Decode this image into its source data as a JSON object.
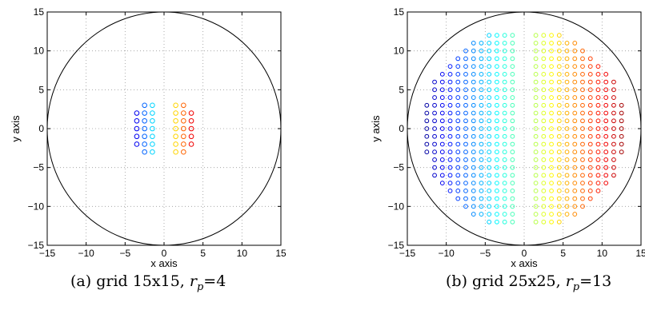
{
  "chart_data": [
    {
      "type": "scatter",
      "xlabel": "x axis",
      "ylabel": "y axis",
      "xlim": [
        -15,
        15
      ],
      "ylim": [
        -15,
        15
      ],
      "xticks": [
        -15,
        -10,
        -5,
        0,
        5,
        10,
        15
      ],
      "yticks": [
        -15,
        -10,
        -5,
        0,
        5,
        10,
        15
      ],
      "tick_labels": [
        "−15",
        "−10",
        "−5",
        "0",
        "5",
        "10",
        "15"
      ],
      "grid": "dotted",
      "circle": {
        "center": [
          0,
          0
        ],
        "radius": 15
      },
      "grid_size": 15,
      "rp": 4,
      "points": "pupil of radius 4 on 15x15 grid with 1-unit central column gap; colored by x (jet)",
      "caption": {
        "prefix": "(a) grid 15x15, ",
        "var": "r",
        "sub": "p",
        "suffix": "=4"
      }
    },
    {
      "type": "scatter",
      "xlabel": "x axis",
      "ylabel": "y axis",
      "xlim": [
        -15,
        15
      ],
      "ylim": [
        -15,
        15
      ],
      "xticks": [
        -15,
        -10,
        -5,
        0,
        5,
        10,
        15
      ],
      "yticks": [
        -15,
        -10,
        -5,
        0,
        5,
        10,
        15
      ],
      "tick_labels": [
        "−15",
        "−10",
        "−5",
        "0",
        "5",
        "10",
        "15"
      ],
      "grid": "dotted",
      "circle": {
        "center": [
          0,
          0
        ],
        "radius": 15
      },
      "grid_size": 25,
      "rp": 13,
      "points": "pupil of radius 13 on 25x25 grid with central column gap; colored by x (jet)",
      "caption": {
        "prefix": "(b) grid 25x25, ",
        "var": "r",
        "sub": "p",
        "suffix": "=13"
      }
    }
  ],
  "colors": {
    "colormap": "jet",
    "circle": "#000000",
    "grid": "#999999"
  }
}
